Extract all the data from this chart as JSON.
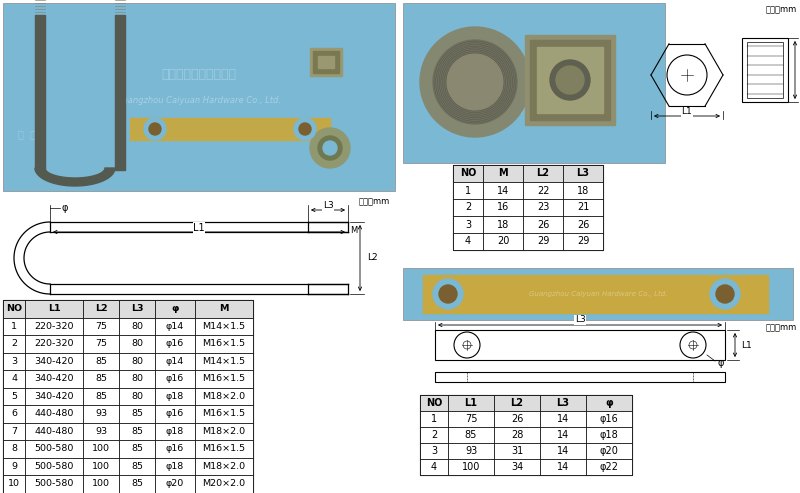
{
  "bg_color": "#ffffff",
  "photo_blue": "#7ab8d4",
  "unit_text": "单位：mm",
  "table1": {
    "headers": [
      "NO",
      "L1",
      "L2",
      "L3",
      "φ",
      "M"
    ],
    "rows": [
      [
        "1",
        "220-320",
        "75",
        "80",
        "φ14",
        "M14×1.5"
      ],
      [
        "2",
        "220-320",
        "75",
        "80",
        "φ16",
        "M16×1.5"
      ],
      [
        "3",
        "340-420",
        "85",
        "80",
        "φ14",
        "M14×1.5"
      ],
      [
        "4",
        "340-420",
        "85",
        "80",
        "φ16",
        "M16×1.5"
      ],
      [
        "5",
        "340-420",
        "85",
        "80",
        "φ18",
        "M18×2.0"
      ],
      [
        "6",
        "440-480",
        "93",
        "85",
        "φ16",
        "M16×1.5"
      ],
      [
        "7",
        "440-480",
        "93",
        "85",
        "φ18",
        "M18×2.0"
      ],
      [
        "8",
        "500-580",
        "100",
        "85",
        "φ16",
        "M16×1.5"
      ],
      [
        "9",
        "500-580",
        "100",
        "85",
        "φ18",
        "M18×2.0"
      ],
      [
        "10",
        "500-580",
        "100",
        "85",
        "φ20",
        "M20×2.0"
      ]
    ]
  },
  "table2": {
    "headers": [
      "NO",
      "M",
      "L2",
      "L3"
    ],
    "rows": [
      [
        "1",
        "14",
        "22",
        "18"
      ],
      [
        "2",
        "16",
        "23",
        "21"
      ],
      [
        "3",
        "18",
        "26",
        "26"
      ],
      [
        "4",
        "20",
        "29",
        "29"
      ]
    ]
  },
  "table3": {
    "headers": [
      "NO",
      "L1",
      "L2",
      "L3",
      "φ"
    ],
    "rows": [
      [
        "1",
        "75",
        "26",
        "14",
        "φ16"
      ],
      [
        "2",
        "85",
        "28",
        "14",
        "φ18"
      ],
      [
        "3",
        "93",
        "31",
        "14",
        "φ20"
      ],
      [
        "4",
        "100",
        "34",
        "14",
        "φ22"
      ]
    ]
  },
  "wm_en": "Guangzhou Caiyuan Hardware Co., Ltd.",
  "wm_cn": "广州彩源五金有限公司"
}
